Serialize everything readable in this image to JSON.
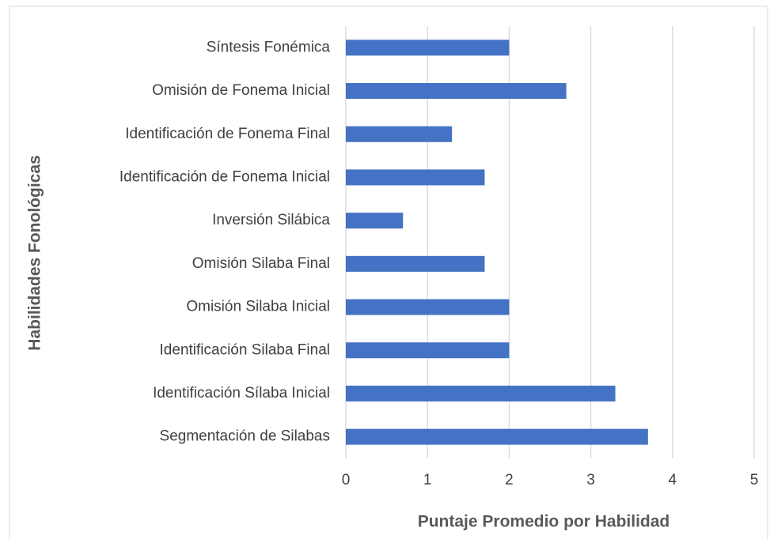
{
  "chart_data": {
    "type": "bar",
    "orientation": "horizontal",
    "xlabel": "Puntaje Promedio por Habilidad",
    "ylabel": "Habilidades Fonológicas",
    "categories": [
      "Síntesis Fonémica",
      "Omisión de Fonema Inicial",
      "Identificación de Fonema Final",
      "Identificación de Fonema Inicial",
      "Inversión Silábica",
      "Omisión Silaba Final",
      "Omisión Silaba Inicial",
      "Identificación Silaba Final",
      "Identificación Sílaba Inicial",
      "Segmentación de Silabas"
    ],
    "values": [
      2,
      2.7,
      1.3,
      1.7,
      0.7,
      1.7,
      2,
      2,
      3.3,
      3.7
    ],
    "color": "#4472c4",
    "xlim": [
      0,
      5
    ],
    "xticks": [
      0,
      1,
      2,
      3,
      4,
      5
    ],
    "grid": true
  }
}
